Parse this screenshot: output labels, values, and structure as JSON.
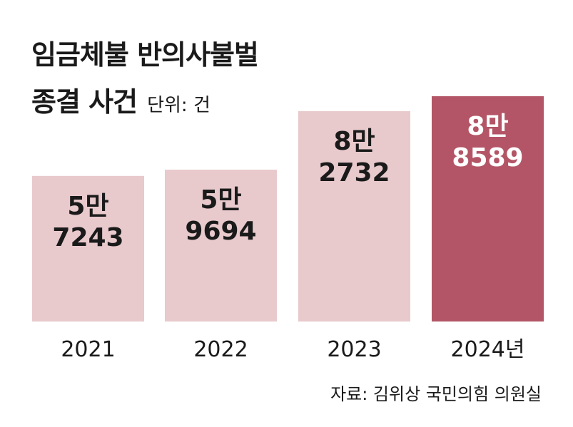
{
  "header": {
    "title_line1": "임금체불 반의사불벌",
    "title_line2": "종결 사건",
    "unit": "단위: 건"
  },
  "source": "자료: 김위상 국민의힘 의원실",
  "colors": {
    "bar_light": "#e8c9cc",
    "bar_highlight": "#b35566",
    "label_dark": "#1a1a1a",
    "label_light": "#ffffff"
  },
  "chart_data": {
    "type": "bar",
    "categories": [
      "2021",
      "2022",
      "2023",
      "2024년"
    ],
    "values": [
      57243,
      59694,
      82732,
      88589
    ],
    "bar_labels": [
      [
        "5만",
        "7243"
      ],
      [
        "5만",
        "9694"
      ],
      [
        "8만",
        "2732"
      ],
      [
        "8만",
        "8589"
      ]
    ],
    "highlight_index": 3,
    "ylim": [
      0,
      88589
    ]
  }
}
